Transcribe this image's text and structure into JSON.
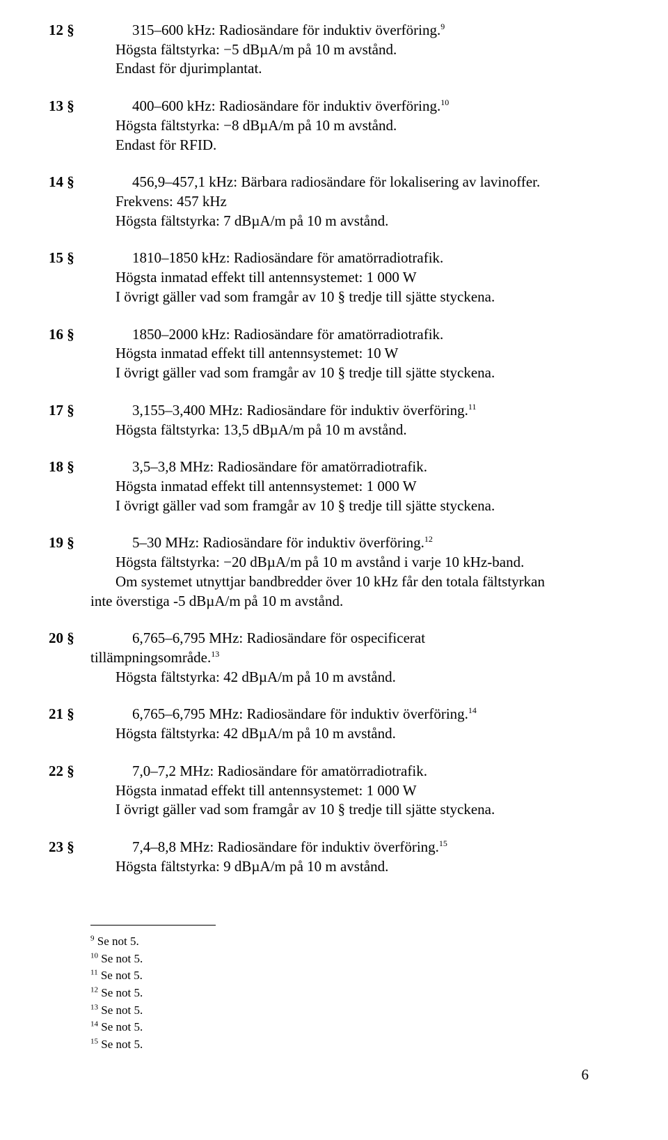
{
  "sections": [
    {
      "num": "12 §",
      "lead": "315–600 kHz: Radiosändare för induktiv överföring.",
      "sup": "9",
      "lines": [
        "Högsta fältstyrka: −5 dBµA/m på 10 m avstånd.",
        "Endast för djurimplantat."
      ]
    },
    {
      "num": "13 §",
      "lead": "400–600 kHz: Radiosändare för induktiv överföring.",
      "sup": "10",
      "lines": [
        "Högsta fältstyrka: −8 dBµA/m på 10 m avstånd.",
        "Endast för RFID."
      ]
    },
    {
      "num": "14 §",
      "lead": "456,9–457,1 kHz: Bärbara radiosändare för lokalisering av lavinoffer.",
      "sup": "",
      "lines": [
        "Frekvens: 457 kHz",
        "Högsta fältstyrka: 7 dBµA/m på 10 m avstånd."
      ]
    },
    {
      "num": "15 §",
      "lead": "1810–1850 kHz: Radiosändare för amatörradiotrafik.",
      "sup": "",
      "lines": [
        "Högsta inmatad effekt till antennsystemet: 1 000 W",
        "I övrigt gäller vad som framgår av 10 § tredje till sjätte styckena."
      ]
    },
    {
      "num": "16 §",
      "lead": "1850–2000 kHz: Radiosändare för amatörradiotrafik.",
      "sup": "",
      "lines": [
        "Högsta inmatad effekt till antennsystemet: 10 W",
        "I övrigt gäller vad som framgår av 10 § tredje till sjätte styckena."
      ]
    },
    {
      "num": "17 §",
      "lead": "3,155–3,400 MHz: Radiosändare för induktiv överföring.",
      "sup": "11",
      "lines": [
        "Högsta fältstyrka: 13,5 dBµA/m på 10 m avstånd."
      ]
    },
    {
      "num": "18 §",
      "lead": "3,5–3,8 MHz: Radiosändare för amatörradiotrafik.",
      "sup": "",
      "lines": [
        "Högsta inmatad effekt till antennsystemet: 1 000 W",
        "I övrigt gäller vad som framgår av 10 § tredje till sjätte styckena."
      ]
    },
    {
      "num": "19 §",
      "lead": "5–30 MHz: Radiosändare för induktiv överföring.",
      "sup": "12",
      "lines": [
        "Högsta fältstyrka: −20 dBµA/m på 10 m avstånd i varje 10 kHz-band.",
        "Om systemet utnyttjar bandbredder över 10 kHz får den totala fältstyrkan"
      ],
      "wrap": "inte överstiga -5 dBµA/m på 10 m avstånd."
    },
    {
      "num": "20 §",
      "lead": "6,765–6,795 MHz: Radiosändare för ospecificerat",
      "sup": "",
      "lead2": "tillämpningsområde.",
      "sup2": "13",
      "lines": [
        "Högsta fältstyrka: 42 dBµA/m på 10 m avstånd."
      ]
    },
    {
      "num": "21 §",
      "lead": "6,765–6,795 MHz: Radiosändare för induktiv överföring.",
      "sup": "14",
      "lines": [
        "Högsta fältstyrka: 42 dBµA/m på 10 m avstånd."
      ]
    },
    {
      "num": "22 §",
      "lead": "7,0–7,2 MHz: Radiosändare för amatörradiotrafik.",
      "sup": "",
      "lines": [
        "Högsta inmatad effekt till antennsystemet: 1 000 W",
        "I övrigt gäller vad som framgår av 10 § tredje till sjätte styckena."
      ]
    },
    {
      "num": "23 §",
      "lead": "7,4–8,8 MHz: Radiosändare för induktiv överföring.",
      "sup": "15",
      "lines": [
        "Högsta fältstyrka: 9 dBµA/m på 10 m avstånd."
      ]
    }
  ],
  "footnotes": [
    {
      "n": "9",
      "t": " Se not 5."
    },
    {
      "n": "10",
      "t": " Se not 5."
    },
    {
      "n": "11",
      "t": " Se not 5."
    },
    {
      "n": "12",
      "t": " Se not 5."
    },
    {
      "n": "13",
      "t": " Se not 5."
    },
    {
      "n": "14",
      "t": " Se not 5."
    },
    {
      "n": "15",
      "t": " Se not 5."
    }
  ],
  "page_number": "6"
}
